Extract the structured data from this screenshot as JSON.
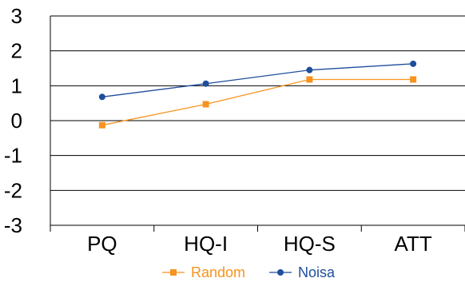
{
  "chart_data": {
    "type": "line",
    "categories": [
      "PQ",
      "HQ-I",
      "HQ-S",
      "ATT"
    ],
    "ylim": [
      -3,
      3
    ],
    "yticks": [
      "3",
      "2",
      "1",
      "0",
      "-1",
      "-2",
      "-3"
    ],
    "grid": true,
    "legend_position": "bottom",
    "series": [
      {
        "name": "Random",
        "values": [
          -0.13,
          0.47,
          1.18,
          1.18
        ],
        "color": "#f7931e",
        "marker": "square"
      },
      {
        "name": "Noisa",
        "values": [
          0.68,
          1.06,
          1.45,
          1.63
        ],
        "color": "#1f4e9c",
        "marker": "circle"
      }
    ]
  }
}
